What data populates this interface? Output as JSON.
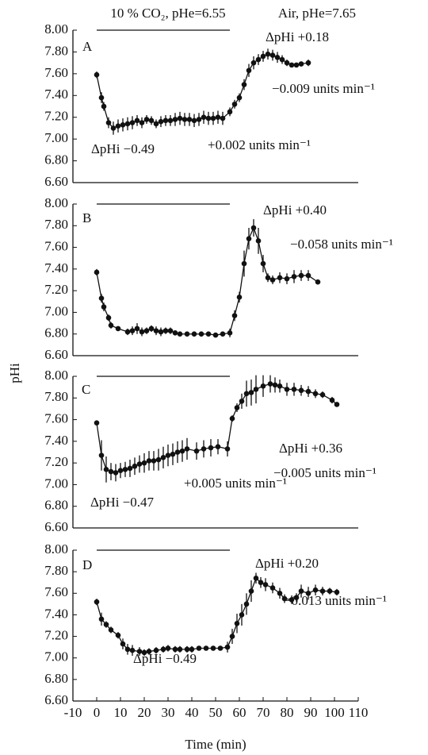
{
  "figure": {
    "conditions": [
      "10 % CO₂, pHe=6.55",
      "Air, pHe=7.65"
    ],
    "ylabel": "pHi",
    "xlabel": "Time (min)"
  },
  "chart_data": [
    {
      "type": "line",
      "label": "A",
      "annotations": [
        "ΔpHi +0.18",
        "−0.009 units min⁻¹",
        "ΔpHi −0.49",
        "+0.002 units min⁻¹"
      ],
      "x": [
        0,
        2,
        3,
        5,
        7,
        9,
        11,
        13,
        15,
        17,
        19,
        21,
        23,
        25,
        27,
        29,
        31,
        33,
        35,
        37,
        39,
        41,
        43,
        45,
        47,
        49,
        51,
        53,
        56,
        58,
        60,
        62,
        64,
        66,
        68,
        70,
        72,
        74,
        76,
        78,
        80,
        82,
        84,
        86,
        89
      ],
      "values": [
        7.59,
        7.38,
        7.3,
        7.15,
        7.1,
        7.12,
        7.13,
        7.14,
        7.15,
        7.17,
        7.15,
        7.18,
        7.17,
        7.14,
        7.16,
        7.17,
        7.17,
        7.18,
        7.19,
        7.18,
        7.18,
        7.17,
        7.18,
        7.2,
        7.19,
        7.19,
        7.2,
        7.19,
        7.25,
        7.32,
        7.38,
        7.5,
        7.63,
        7.7,
        7.73,
        7.76,
        7.78,
        7.77,
        7.75,
        7.73,
        7.7,
        7.68,
        7.68,
        7.69,
        7.7
      ],
      "errors": [
        0.03,
        0.05,
        0.04,
        0.05,
        0.06,
        0.06,
        0.06,
        0.06,
        0.06,
        0.05,
        0.05,
        0.04,
        0.04,
        0.04,
        0.05,
        0.05,
        0.05,
        0.06,
        0.06,
        0.06,
        0.06,
        0.06,
        0.06,
        0.06,
        0.06,
        0.06,
        0.06,
        0.06,
        0.04,
        0.04,
        0.04,
        0.05,
        0.06,
        0.06,
        0.05,
        0.05,
        0.05,
        0.05,
        0.05,
        0.04,
        0.03,
        0.02,
        0.02,
        0.02,
        0.03
      ],
      "color": "#111111",
      "xlim": [
        -10,
        110
      ],
      "ylim": [
        6.6,
        8.0
      ],
      "yticks": [
        {
          "value": 6.6,
          "label": "6.60"
        },
        {
          "value": 6.8,
          "label": "6.80"
        },
        {
          "value": 7.0,
          "label": "7.00"
        },
        {
          "value": 7.2,
          "label": "7.20"
        },
        {
          "value": 7.4,
          "label": "7.40"
        },
        {
          "value": 7.6,
          "label": "7.60"
        },
        {
          "value": 7.8,
          "label": "7.80"
        },
        {
          "value": 8.0,
          "label": "8.00"
        }
      ]
    },
    {
      "type": "line",
      "label": "B",
      "annotations": [
        "ΔpHi +0.40",
        "−0.058 units min⁻¹"
      ],
      "x": [
        0,
        2,
        3,
        5,
        6,
        9,
        13,
        15,
        17,
        19,
        21,
        23,
        25,
        27,
        29,
        31,
        33,
        35,
        38,
        41,
        44,
        47,
        50,
        53,
        56,
        58,
        60,
        62,
        64,
        66,
        68,
        70,
        72,
        74,
        77,
        80,
        83,
        86,
        89,
        93
      ],
      "values": [
        7.37,
        7.13,
        7.05,
        6.95,
        6.88,
        6.85,
        6.82,
        6.83,
        6.85,
        6.82,
        6.83,
        6.85,
        6.83,
        6.82,
        6.83,
        6.83,
        6.81,
        6.8,
        6.8,
        6.8,
        6.8,
        6.8,
        6.79,
        6.8,
        6.81,
        6.97,
        7.14,
        7.45,
        7.68,
        7.78,
        7.66,
        7.45,
        7.32,
        7.3,
        7.32,
        7.31,
        7.33,
        7.34,
        7.34,
        7.28
      ],
      "errors": [
        0.03,
        0.04,
        0.04,
        0.03,
        0.03,
        0.02,
        0.03,
        0.04,
        0.05,
        0.04,
        0.03,
        0.03,
        0.04,
        0.04,
        0.03,
        0.03,
        0.02,
        0.02,
        0.02,
        0.02,
        0.02,
        0.02,
        0.02,
        0.02,
        0.04,
        0.05,
        0.05,
        0.12,
        0.1,
        0.08,
        0.12,
        0.08,
        0.04,
        0.04,
        0.05,
        0.05,
        0.06,
        0.05,
        0.05,
        0.02
      ],
      "color": "#111111",
      "xlim": [
        -10,
        110
      ],
      "ylim": [
        6.6,
        8.0
      ],
      "yticks": [
        {
          "value": 6.6,
          "label": "6.60"
        },
        {
          "value": 6.8,
          "label": "6.80"
        },
        {
          "value": 7.0,
          "label": "7.00"
        },
        {
          "value": 7.2,
          "label": "7.20"
        },
        {
          "value": 7.4,
          "label": "7.40"
        },
        {
          "value": 7.6,
          "label": "7.60"
        },
        {
          "value": 7.8,
          "label": "7.80"
        },
        {
          "value": 8.0,
          "label": "8.00"
        }
      ]
    },
    {
      "type": "line",
      "label": "C",
      "annotations": [
        "ΔpHi −0.47",
        "+0.005 units min⁻¹",
        "ΔpHi +0.36",
        "−0.005 units min⁻¹"
      ],
      "x": [
        0,
        2,
        4,
        6,
        8,
        10,
        12,
        14,
        16,
        18,
        20,
        22,
        24,
        26,
        28,
        30,
        32,
        34,
        36,
        38,
        42,
        45,
        48,
        51,
        55,
        57,
        59,
        61,
        63,
        65,
        67,
        70,
        73,
        75,
        77,
        80,
        83,
        86,
        89,
        92,
        95,
        99,
        101
      ],
      "values": [
        7.57,
        7.27,
        7.14,
        7.12,
        7.11,
        7.13,
        7.14,
        7.15,
        7.17,
        7.19,
        7.2,
        7.22,
        7.22,
        7.23,
        7.25,
        7.27,
        7.28,
        7.3,
        7.31,
        7.33,
        7.31,
        7.33,
        7.34,
        7.35,
        7.33,
        7.61,
        7.71,
        7.77,
        7.84,
        7.85,
        7.88,
        7.91,
        7.93,
        7.92,
        7.91,
        7.88,
        7.88,
        7.87,
        7.86,
        7.84,
        7.83,
        7.78,
        7.74
      ],
      "errors": [
        0.02,
        0.14,
        0.12,
        0.08,
        0.08,
        0.07,
        0.07,
        0.08,
        0.08,
        0.08,
        0.09,
        0.09,
        0.09,
        0.1,
        0.1,
        0.1,
        0.1,
        0.1,
        0.1,
        0.1,
        0.08,
        0.08,
        0.08,
        0.07,
        0.07,
        0.03,
        0.04,
        0.07,
        0.12,
        0.12,
        0.13,
        0.1,
        0.08,
        0.07,
        0.06,
        0.06,
        0.06,
        0.05,
        0.05,
        0.04,
        0.03,
        0.03,
        0.02
      ],
      "color": "#111111",
      "xlim": [
        -10,
        110
      ],
      "ylim": [
        6.6,
        8.0
      ],
      "yticks": [
        {
          "value": 6.6,
          "label": "6.60"
        },
        {
          "value": 6.8,
          "label": "6.80"
        },
        {
          "value": 7.0,
          "label": "7.00"
        },
        {
          "value": 7.2,
          "label": "7.20"
        },
        {
          "value": 7.4,
          "label": "7.40"
        },
        {
          "value": 7.6,
          "label": "7.60"
        },
        {
          "value": 7.8,
          "label": "7.80"
        },
        {
          "value": 8.0,
          "label": "8.00"
        }
      ]
    },
    {
      "type": "line",
      "label": "D",
      "annotations": [
        "ΔpHi +0.20",
        "−0.013 units min⁻¹",
        "ΔpHi −0.49"
      ],
      "x": [
        0,
        2,
        4,
        6,
        9,
        11,
        13,
        15,
        18,
        20,
        22,
        25,
        28,
        30,
        33,
        35,
        38,
        40,
        43,
        46,
        49,
        52,
        55,
        57,
        59,
        61,
        63,
        65,
        67,
        69,
        71,
        74,
        77,
        79,
        82,
        84,
        86,
        89,
        92,
        95,
        98,
        101
      ],
      "values": [
        7.52,
        7.36,
        7.31,
        7.26,
        7.21,
        7.13,
        7.08,
        7.07,
        7.06,
        7.05,
        7.06,
        7.07,
        7.08,
        7.09,
        7.08,
        7.08,
        7.08,
        7.08,
        7.09,
        7.09,
        7.09,
        7.09,
        7.1,
        7.2,
        7.32,
        7.4,
        7.5,
        7.62,
        7.74,
        7.7,
        7.68,
        7.65,
        7.6,
        7.55,
        7.54,
        7.56,
        7.62,
        7.6,
        7.63,
        7.62,
        7.62,
        7.61
      ],
      "errors": [
        0.03,
        0.06,
        0.03,
        0.03,
        0.03,
        0.05,
        0.05,
        0.05,
        0.04,
        0.03,
        0.03,
        0.03,
        0.03,
        0.03,
        0.03,
        0.03,
        0.03,
        0.03,
        0.02,
        0.02,
        0.02,
        0.02,
        0.05,
        0.07,
        0.09,
        0.1,
        0.1,
        0.1,
        0.05,
        0.05,
        0.06,
        0.05,
        0.05,
        0.04,
        0.04,
        0.04,
        0.06,
        0.06,
        0.05,
        0.04,
        0.03,
        0.03
      ],
      "color": "#111111",
      "xlim": [
        -10,
        110
      ],
      "ylim": [
        6.6,
        8.0
      ],
      "yticks": [
        {
          "value": 6.6,
          "label": "6.60"
        },
        {
          "value": 6.8,
          "label": "6.80"
        },
        {
          "value": 7.0,
          "label": "7.00"
        },
        {
          "value": 7.2,
          "label": "7.20"
        },
        {
          "value": 7.4,
          "label": "7.40"
        },
        {
          "value": 7.6,
          "label": "7.60"
        },
        {
          "value": 7.8,
          "label": "7.80"
        },
        {
          "value": 8.0,
          "label": "8.00"
        }
      ],
      "xticks": [
        -10,
        0,
        10,
        20,
        30,
        40,
        50,
        60,
        70,
        80,
        90,
        100,
        110
      ]
    }
  ]
}
